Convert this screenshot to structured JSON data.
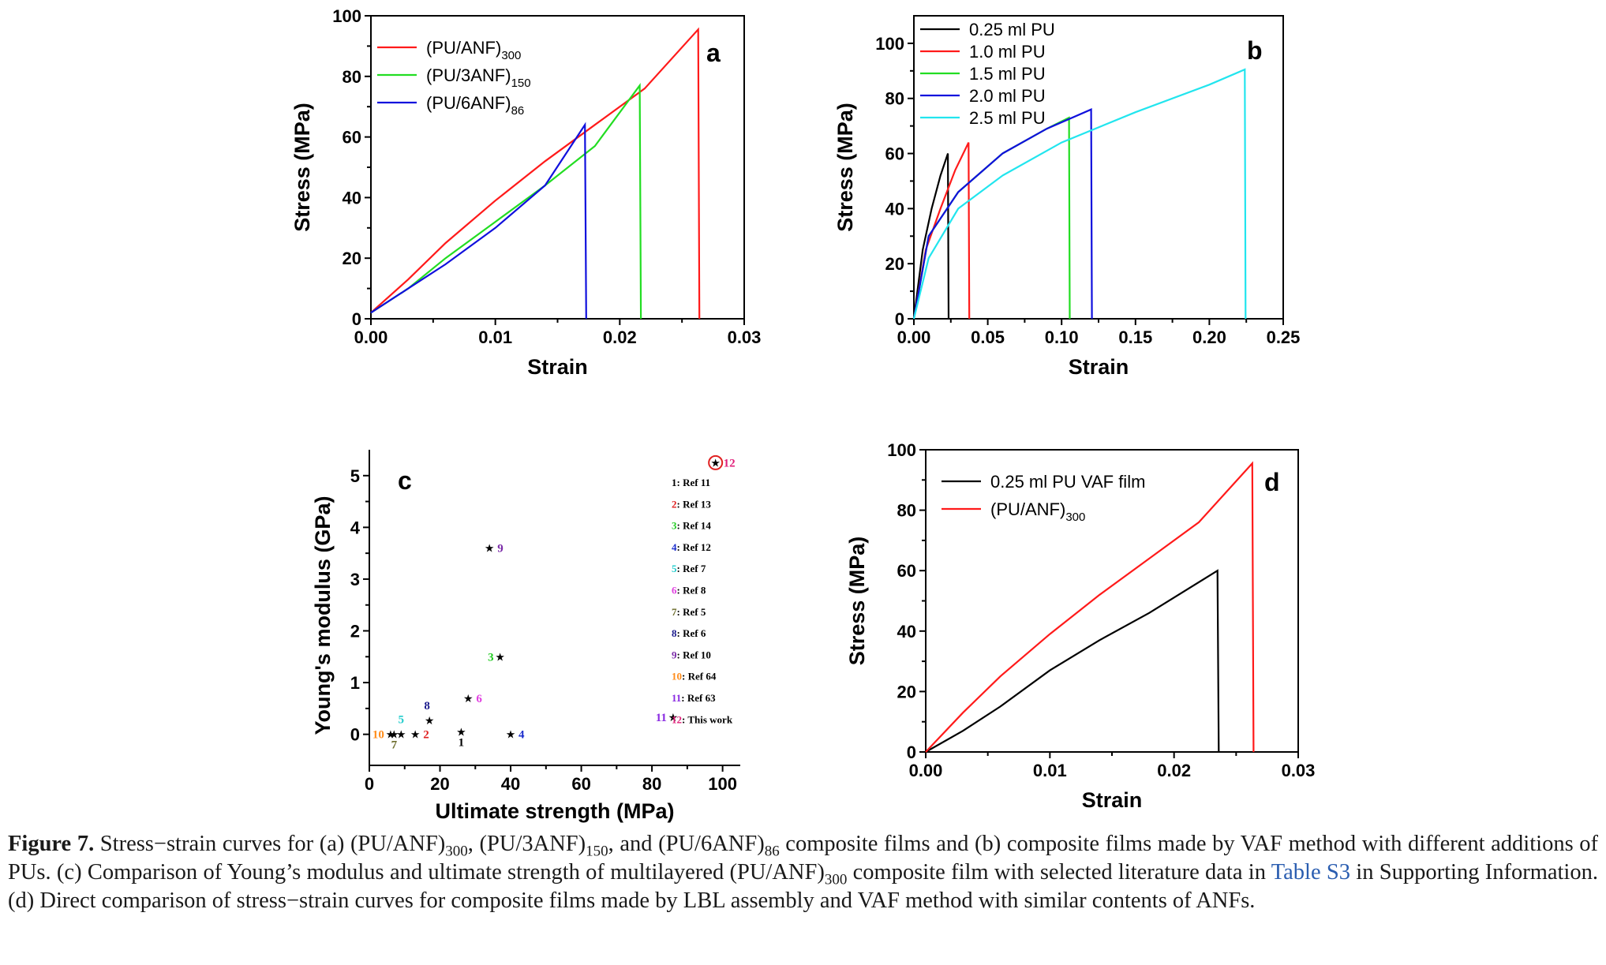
{
  "chart_data": [
    {
      "panel": "a",
      "type": "line",
      "xlabel": "Strain",
      "ylabel": "Stress (MPa)",
      "xlim": [
        0,
        0.03
      ],
      "ylim": [
        0,
        100
      ],
      "xticks": [
        "0.00",
        "0.01",
        "0.02",
        "0.03"
      ],
      "yticks": [
        "0",
        "20",
        "40",
        "60",
        "80",
        "100"
      ],
      "series": [
        {
          "name": "(PU/ANF)",
          "sub": "300",
          "color": "#ff1a1a",
          "points": [
            [
              0,
              2
            ],
            [
              0.003,
              13
            ],
            [
              0.006,
              25
            ],
            [
              0.01,
              39
            ],
            [
              0.014,
              52
            ],
            [
              0.018,
              64
            ],
            [
              0.022,
              76
            ],
            [
              0.0263,
              95.5
            ],
            [
              0.0264,
              0
            ]
          ]
        },
        {
          "name": "(PU/3ANF)",
          "sub": "150",
          "color": "#22dd22",
          "points": [
            [
              0,
              2
            ],
            [
              0.003,
              10
            ],
            [
              0.006,
              20
            ],
            [
              0.01,
              32
            ],
            [
              0.014,
              44
            ],
            [
              0.018,
              57
            ],
            [
              0.0216,
              77
            ],
            [
              0.0217,
              0
            ]
          ]
        },
        {
          "name": "(PU/6ANF)",
          "sub": "86",
          "color": "#1010dd",
          "points": [
            [
              0,
              2
            ],
            [
              0.003,
              10
            ],
            [
              0.006,
              18
            ],
            [
              0.01,
              30
            ],
            [
              0.014,
              44
            ],
            [
              0.0172,
              64
            ],
            [
              0.0173,
              0
            ]
          ]
        }
      ]
    },
    {
      "panel": "b",
      "type": "line",
      "xlabel": "Strain",
      "ylabel": "Stress (MPa)",
      "xlim": [
        0,
        0.25
      ],
      "ylim": [
        0,
        110
      ],
      "xticks": [
        "0.00",
        "0.05",
        "0.10",
        "0.15",
        "0.20",
        "0.25"
      ],
      "yticks": [
        "0",
        "20",
        "40",
        "60",
        "80",
        "100"
      ],
      "series": [
        {
          "name": "0.25 ml PU",
          "color": "#000000",
          "points": [
            [
              0,
              0
            ],
            [
              0.006,
              25
            ],
            [
              0.012,
              40
            ],
            [
              0.018,
              52
            ],
            [
              0.023,
              60
            ],
            [
              0.0235,
              0
            ]
          ]
        },
        {
          "name": "1.0 ml PU",
          "color": "#ff1a1a",
          "points": [
            [
              0,
              0
            ],
            [
              0.008,
              25
            ],
            [
              0.018,
              40
            ],
            [
              0.028,
              54
            ],
            [
              0.037,
              64
            ],
            [
              0.0375,
              0
            ]
          ]
        },
        {
          "name": "1.5 ml PU",
          "color": "#22dd22",
          "points": [
            [
              0,
              0
            ],
            [
              0.01,
              30
            ],
            [
              0.03,
              46
            ],
            [
              0.06,
              60
            ],
            [
              0.09,
              69
            ],
            [
              0.105,
              73
            ],
            [
              0.1055,
              0
            ]
          ]
        },
        {
          "name": "2.0 ml PU",
          "color": "#1010dd",
          "points": [
            [
              0,
              0
            ],
            [
              0.01,
              30
            ],
            [
              0.03,
              46
            ],
            [
              0.06,
              60
            ],
            [
              0.09,
              69
            ],
            [
              0.12,
              76
            ],
            [
              0.1205,
              0
            ]
          ]
        },
        {
          "name": "2.5 ml PU",
          "color": "#22e5ee",
          "points": [
            [
              0,
              0
            ],
            [
              0.01,
              22
            ],
            [
              0.03,
              40
            ],
            [
              0.06,
              52
            ],
            [
              0.1,
              64
            ],
            [
              0.15,
              75
            ],
            [
              0.2,
              85
            ],
            [
              0.224,
              90.5
            ],
            [
              0.2245,
              0
            ]
          ]
        }
      ]
    },
    {
      "panel": "c",
      "type": "scatter",
      "xlabel": "Ultimate strength (MPa)",
      "ylabel": "Young's modulus (GPa)",
      "xlim": [
        0,
        105
      ],
      "ylim": [
        -0.6,
        5.5
      ],
      "xticks": [
        "0",
        "20",
        "40",
        "60",
        "80",
        "100"
      ],
      "yticks": [
        "0",
        "1",
        "2",
        "3",
        "4",
        "5"
      ],
      "points": [
        {
          "id": "1",
          "x": 26,
          "y": 0.05,
          "color": "#000000",
          "label_pos": "below"
        },
        {
          "id": "2",
          "x": 13,
          "y": 0.0,
          "color": "#e02020",
          "label_pos": "right"
        },
        {
          "id": "3",
          "x": 37,
          "y": 1.5,
          "color": "#22cc22",
          "label_pos": "left"
        },
        {
          "id": "4",
          "x": 40,
          "y": 0.0,
          "color": "#1a2ccc",
          "label_pos": "right"
        },
        {
          "id": "5",
          "x": 9,
          "y": 0.0,
          "color": "#22cccc",
          "label_pos": "above"
        },
        {
          "id": "6",
          "x": 28,
          "y": 0.7,
          "color": "#e040e0",
          "label_pos": "right"
        },
        {
          "id": "7",
          "x": 7,
          "y": 0.0,
          "color": "#6b6b2a",
          "label_pos": "below"
        },
        {
          "id": "8",
          "x": 17,
          "y": 0.27,
          "color": "#1a1a8c",
          "label_pos": "above-left"
        },
        {
          "id": "9",
          "x": 34,
          "y": 3.6,
          "color": "#7a2aa8",
          "label_pos": "right"
        },
        {
          "id": "10",
          "x": 6,
          "y": 0.0,
          "color": "#ff8c1a",
          "label_pos": "left"
        },
        {
          "id": "11",
          "x": 86,
          "y": 0.33,
          "color": "#8a2be2",
          "label_pos": "left"
        },
        {
          "id": "12",
          "x": 98,
          "y": 5.25,
          "color": "#e0207a",
          "label_pos": "right",
          "circled": true
        }
      ],
      "legend": [
        {
          "id": "1",
          "text": ": Ref 11",
          "color": "#000000"
        },
        {
          "id": "2",
          "text": ": Ref 13",
          "color": "#e02020"
        },
        {
          "id": "3",
          "text": ": Ref 14",
          "color": "#22cc22"
        },
        {
          "id": "4",
          "text": ": Ref 12",
          "color": "#1a2ccc"
        },
        {
          "id": "5",
          "text": ": Ref  7",
          "color": "#22cccc"
        },
        {
          "id": "6",
          "text": ": Ref  8",
          "color": "#e040e0"
        },
        {
          "id": "7",
          "text": ": Ref  5",
          "color": "#6b6b2a"
        },
        {
          "id": "8",
          "text": ": Ref  6",
          "color": "#1a1a8c"
        },
        {
          "id": "9",
          "text": ": Ref 10",
          "color": "#7a2aa8"
        },
        {
          "id": "10",
          "text": ": Ref 64",
          "color": "#ff8c1a"
        },
        {
          "id": "11",
          "text": ": Ref 63",
          "color": "#8a2be2"
        },
        {
          "id": "12",
          "text": ": This work",
          "color": "#e0207a"
        }
      ]
    },
    {
      "panel": "d",
      "type": "line",
      "xlabel": "Strain",
      "ylabel": "Stress (MPa)",
      "xlim": [
        0,
        0.03
      ],
      "ylim": [
        0,
        100
      ],
      "xticks": [
        "0.00",
        "0.01",
        "0.02",
        "0.03"
      ],
      "yticks": [
        "0",
        "20",
        "40",
        "60",
        "80",
        "100"
      ],
      "series": [
        {
          "name": "0.25 ml PU VAF film",
          "color": "#000000",
          "points": [
            [
              0,
              0
            ],
            [
              0.003,
              7
            ],
            [
              0.006,
              15
            ],
            [
              0.01,
              27
            ],
            [
              0.014,
              37
            ],
            [
              0.018,
              46
            ],
            [
              0.0235,
              60
            ],
            [
              0.0236,
              0
            ]
          ]
        },
        {
          "name": "(PU/ANF)",
          "sub": "300",
          "color": "#ff1a1a",
          "points": [
            [
              0,
              0
            ],
            [
              0.003,
              13
            ],
            [
              0.006,
              25
            ],
            [
              0.01,
              39
            ],
            [
              0.014,
              52
            ],
            [
              0.018,
              64
            ],
            [
              0.022,
              76
            ],
            [
              0.0263,
              95.5
            ],
            [
              0.0264,
              0
            ]
          ]
        }
      ]
    }
  ],
  "caption": {
    "label": "Figure 7.",
    "p1": " Stress−strain curves for (a) (PU/ANF)",
    "s1": "300",
    "p2": ", (PU/3ANF)",
    "s2": "150",
    "p3": ", and (PU/6ANF)",
    "s3": "86",
    "p4": " composite films and (b) composite films made by VAF method with different additions of PUs. (c) Comparison of Young’s modulus and ultimate strength of multilayered (PU/ANF)",
    "s4": "300",
    "p5": " composite film with selected literature data in ",
    "link": "Table S3",
    "p6": " in Supporting Information. (d) Direct comparison of stress−strain curves for composite films made by LBL assembly and VAF method with similar contents of ANFs."
  }
}
